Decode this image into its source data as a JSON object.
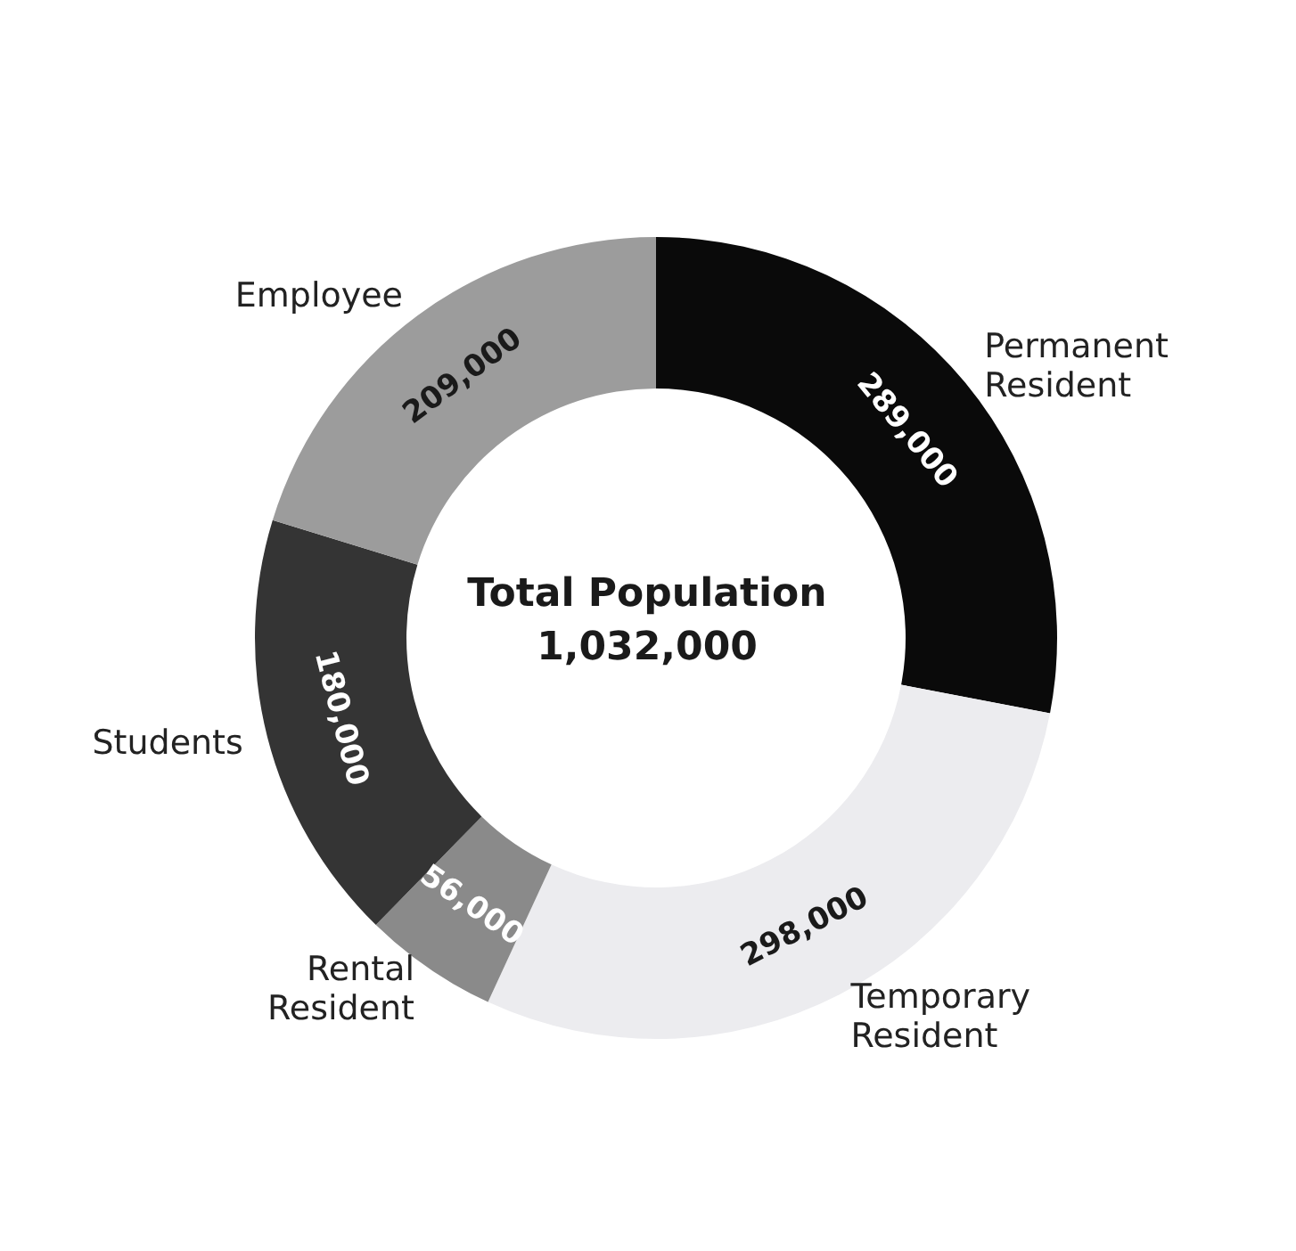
{
  "chart_data": {
    "type": "donut",
    "title": "Total Population",
    "annotations": [
      "1,032,000"
    ],
    "categories": [
      "Permanent Resident",
      "Temporary Resident",
      "Rental Resident",
      "Students",
      "Employee"
    ],
    "values": [
      289000,
      298000,
      56000,
      180000,
      209000
    ],
    "colors": [
      "#0a0a0a",
      "#ececef",
      "#8a8a8a",
      "#343434",
      "#9c9c9c"
    ],
    "value_labels": [
      "289,000",
      "298,000",
      "56,000",
      "180,000",
      "209,000"
    ]
  }
}
